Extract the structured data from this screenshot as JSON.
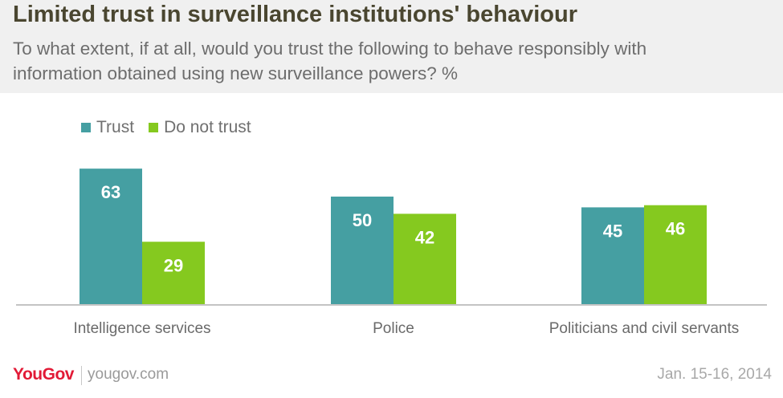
{
  "title": "Limited trust in surveillance institutions' behaviour",
  "subtitle": "To what extent, if at all, would you trust the following to behave responsibly with information obtained using new surveillance powers? %",
  "legend": [
    {
      "label": "Trust",
      "color": "#459fa2"
    },
    {
      "label": "Do not trust",
      "color": "#85c91f"
    }
  ],
  "chart_data": {
    "type": "bar",
    "title": "Limited trust in surveillance institutions' behaviour",
    "categories": [
      "Intelligence services",
      "Police",
      "Politicians and civil servants"
    ],
    "series": [
      {
        "name": "Trust",
        "values": [
          63,
          50,
          45
        ],
        "color": "#459fa2"
      },
      {
        "name": "Do not trust",
        "values": [
          29,
          42,
          46
        ],
        "color": "#85c91f"
      }
    ],
    "xlabel": "",
    "ylabel": "",
    "ylim": [
      0,
      100
    ],
    "grid": false,
    "legend_position": "top-left"
  },
  "footer": {
    "brand": "YouGov",
    "url": "yougov.com",
    "date": "Jan. 15-16, 2014"
  },
  "colors": {
    "title": "#4a4630",
    "header_background": "#f0f0f0",
    "brand": "#e21a36",
    "baseline": "#c4c4c4"
  }
}
